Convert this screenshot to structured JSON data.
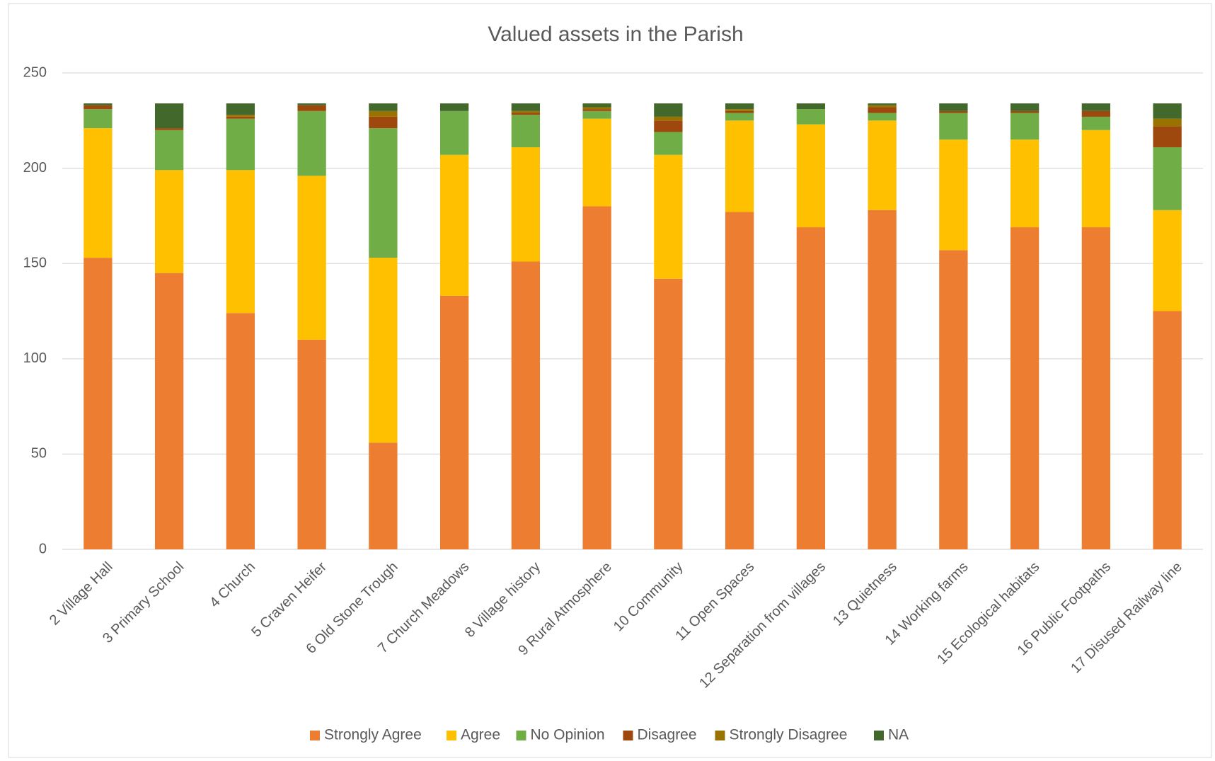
{
  "chart_data": {
    "type": "stacked_bar",
    "title": "Valued assets in the Parish",
    "categories": [
      "2 Village Hall",
      "3 Primary School",
      "4 Church",
      "5 Craven Heifer",
      "6 Old Stone Trough",
      "7 Church Meadows",
      "8 Village history",
      "9 Rural Atmosphere",
      "10 Community",
      "11 Open Spaces",
      "12 Separation from villages",
      "13 Quietness",
      "14 Working farms",
      "15 Ecological habitats",
      "16 Public Footpaths",
      "17 Disused Railway line"
    ],
    "series": [
      {
        "name": "Strongly Agree",
        "color": "#ed7d31",
        "values": [
          153,
          145,
          124,
          110,
          56,
          133,
          151,
          180,
          142,
          177,
          169,
          178,
          157,
          169,
          169,
          125
        ]
      },
      {
        "name": "Agree",
        "color": "#ffc000",
        "values": [
          68,
          54,
          75,
          86,
          97,
          74,
          60,
          46,
          65,
          48,
          54,
          47,
          58,
          46,
          51,
          53
        ]
      },
      {
        "name": "No Opinion",
        "color": "#70ad47",
        "values": [
          10,
          21,
          27,
          34,
          68,
          23,
          17,
          4,
          12,
          4,
          8,
          4,
          14,
          14,
          7,
          33
        ]
      },
      {
        "name": "Disagree",
        "color": "#9e480e",
        "values": [
          2,
          1,
          1,
          3,
          6,
          0,
          1,
          1,
          6,
          1,
          0,
          3,
          1,
          1,
          3,
          11
        ]
      },
      {
        "name": "Strongly Disagree",
        "color": "#997300",
        "values": [
          0,
          0,
          1,
          0,
          3,
          0,
          1,
          1,
          2,
          1,
          0,
          1,
          0,
          0,
          0,
          4
        ]
      },
      {
        "name": "NA",
        "color": "#43682b",
        "values": [
          1,
          13,
          6,
          1,
          4,
          4,
          4,
          2,
          7,
          3,
          3,
          1,
          4,
          4,
          4,
          8
        ]
      }
    ],
    "ylim": [
      0,
      250
    ],
    "yticks": [
      0,
      50,
      100,
      150,
      200,
      250
    ],
    "grid": true,
    "legend": "bottom"
  }
}
